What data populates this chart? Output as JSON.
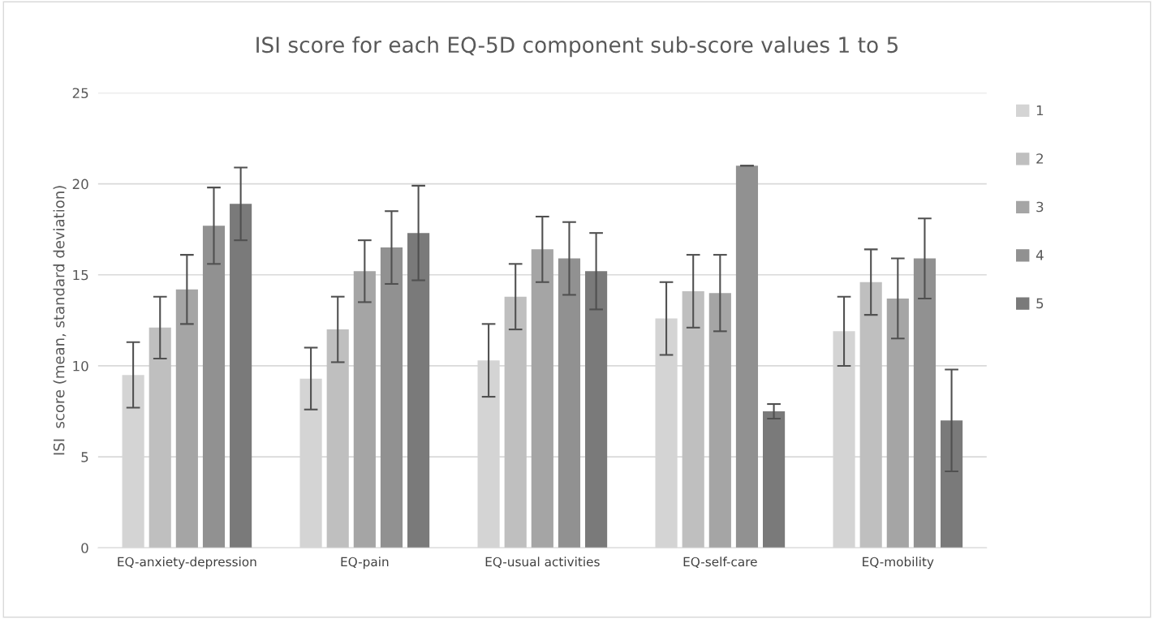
{
  "chart_data": {
    "type": "bar",
    "title": "ISI score for each EQ-5D component sub-score values 1 to 5",
    "ylabel": "ISI  score (mean, standard deviation)",
    "categories": [
      "EQ-anxiety-depression",
      "EQ-pain",
      "EQ-usual activities",
      "EQ-self-care",
      "EQ-mobility"
    ],
    "series": [
      {
        "name": "1",
        "color": "#d4d4d4",
        "values": [
          9.5,
          9.3,
          10.3,
          12.6,
          11.9
        ],
        "errors": [
          1.8,
          1.7,
          2.0,
          2.0,
          1.9
        ]
      },
      {
        "name": "2",
        "color": "#bfbfbf",
        "values": [
          12.1,
          12.0,
          13.8,
          14.1,
          14.6
        ],
        "errors": [
          1.7,
          1.8,
          1.8,
          2.0,
          1.8
        ]
      },
      {
        "name": "3",
        "color": "#a5a5a5",
        "values": [
          14.2,
          15.2,
          16.4,
          14.0,
          13.7
        ],
        "errors": [
          1.9,
          1.7,
          1.8,
          2.1,
          2.2
        ]
      },
      {
        "name": "4",
        "color": "#919191",
        "values": [
          17.7,
          16.5,
          15.9,
          21.0,
          15.9
        ],
        "errors": [
          2.1,
          2.0,
          2.0,
          0.0,
          2.2
        ]
      },
      {
        "name": "5",
        "color": "#7a7a7a",
        "values": [
          18.9,
          17.3,
          15.2,
          7.5,
          7.0
        ],
        "errors": [
          2.0,
          2.6,
          2.1,
          0.4,
          2.8
        ]
      }
    ],
    "ylim": [
      0,
      25
    ],
    "yticks": [
      0,
      5,
      10,
      15,
      20,
      25
    ],
    "grid": "y",
    "legend": "right"
  }
}
